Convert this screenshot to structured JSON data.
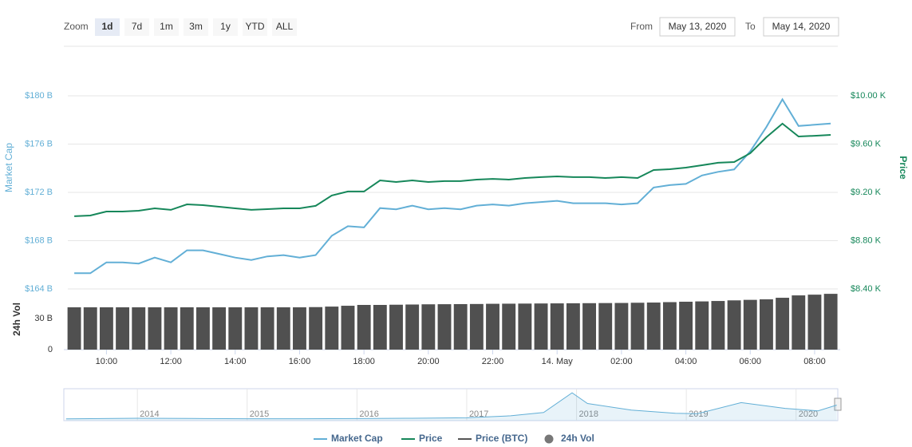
{
  "chart_data": {
    "type": "line",
    "zoom_label": "Zoom",
    "zoom_buttons": [
      "1d",
      "7d",
      "1m",
      "3m",
      "1y",
      "YTD",
      "ALL"
    ],
    "zoom_active": 0,
    "from_label": "From",
    "from_date": "May 13, 2020",
    "to_label": "To",
    "to_date": "May 14, 2020",
    "y_label": "Market Cap",
    "y2_label": "Price",
    "y3_label": "24h Vol",
    "x": [
      9.0,
      9.5,
      10.0,
      10.5,
      11.0,
      11.5,
      12.0,
      12.5,
      13.0,
      13.5,
      14.0,
      14.5,
      15.0,
      15.5,
      16.0,
      16.5,
      17.0,
      17.5,
      18.0,
      18.5,
      19.0,
      19.5,
      20.0,
      20.5,
      21.0,
      21.5,
      22.0,
      22.5,
      23.0,
      23.5,
      24.0,
      24.5,
      25.0,
      25.5,
      26.0,
      26.5,
      27.0,
      27.5,
      28.0,
      28.5,
      29.0,
      29.5,
      30.0,
      30.5,
      31.0,
      31.5,
      32.0,
      32.5
    ],
    "xlim": [
      8.8,
      32.72
    ],
    "xticks": [
      {
        "value": 10,
        "label": "10:00"
      },
      {
        "value": 12,
        "label": "12:00"
      },
      {
        "value": 14,
        "label": "14:00"
      },
      {
        "value": 16,
        "label": "16:00"
      },
      {
        "value": 18,
        "label": "18:00"
      },
      {
        "value": 20,
        "label": "20:00"
      },
      {
        "value": 22,
        "label": "22:00"
      },
      {
        "value": 24,
        "label": "14. May"
      },
      {
        "value": 26,
        "label": "02:00"
      },
      {
        "value": 28,
        "label": "04:00"
      },
      {
        "value": 30,
        "label": "06:00"
      },
      {
        "value": 32,
        "label": "08:00"
      }
    ],
    "ylim": [
      164,
      180
    ],
    "yticks": [
      {
        "value": 164,
        "label": "$164 B"
      },
      {
        "value": 168,
        "label": "$168 B"
      },
      {
        "value": 172,
        "label": "$172 B"
      },
      {
        "value": 176,
        "label": "$176 B"
      },
      {
        "value": 180,
        "label": "$180 B"
      }
    ],
    "y2lim": [
      8400,
      10000
    ],
    "y2ticks": [
      {
        "value": 8400,
        "label": "$8.40 K"
      },
      {
        "value": 8800,
        "label": "$8.80 K"
      },
      {
        "value": 9200,
        "label": "$9.20 K"
      },
      {
        "value": 9600,
        "label": "$9.60 K"
      },
      {
        "value": 10000,
        "label": "$10.00 K"
      }
    ],
    "y3lim": [
      0,
      58.5
    ],
    "y3ticks": [
      0,
      {
        "value": 30,
        "label": "30 B"
      }
    ],
    "grid": true,
    "series": [
      {
        "name": "Market Cap",
        "color": "#62afd6",
        "axis": "y",
        "values": [
          165.3,
          165.3,
          166.2,
          166.2,
          166.1,
          166.6,
          166.2,
          167.2,
          167.2,
          166.9,
          166.6,
          166.4,
          166.7,
          166.8,
          166.6,
          166.8,
          168.4,
          169.2,
          169.1,
          170.7,
          170.6,
          170.9,
          170.6,
          170.7,
          170.6,
          170.9,
          171.0,
          170.9,
          171.1,
          171.2,
          171.3,
          171.1,
          171.1,
          171.1,
          171.0,
          171.1,
          172.4,
          172.6,
          172.7,
          173.4,
          173.7,
          173.9,
          175.4,
          177.4,
          179.7,
          177.5,
          177.6,
          177.7
        ]
      },
      {
        "name": "Price",
        "color": "#16875a",
        "axis": "y2",
        "values": [
          9002,
          9008,
          9041,
          9041,
          9048,
          9068,
          9055,
          9101,
          9094,
          9081,
          9068,
          9055,
          9061,
          9068,
          9068,
          9088,
          9174,
          9207,
          9207,
          9299,
          9286,
          9299,
          9286,
          9293,
          9293,
          9306,
          9312,
          9306,
          9319,
          9326,
          9332,
          9326,
          9326,
          9319,
          9326,
          9319,
          9385,
          9392,
          9405,
          9425,
          9445,
          9451,
          9524,
          9656,
          9769,
          9663,
          9669,
          9676
        ]
      },
      {
        "name": "Price (BTC)",
        "color": "#555555",
        "hidden": true
      },
      {
        "name": "24h Vol",
        "color": "#505050",
        "axis": "y3",
        "mark": "bar",
        "values": [
          40.8,
          40.8,
          40.8,
          40.8,
          40.8,
          40.8,
          40.8,
          40.8,
          40.8,
          40.8,
          40.8,
          40.8,
          40.8,
          40.8,
          40.8,
          41.0,
          41.5,
          42.3,
          43.1,
          43.1,
          43.3,
          43.5,
          43.7,
          43.8,
          43.9,
          44.0,
          44.2,
          44.3,
          44.4,
          44.5,
          44.6,
          44.7,
          44.8,
          44.9,
          45.0,
          45.2,
          45.4,
          45.8,
          46.2,
          46.5,
          46.9,
          47.5,
          48.0,
          48.5,
          50.0,
          52.3,
          53.0,
          53.8
        ]
      }
    ],
    "navigator": {
      "x": [
        2013.35,
        2014.0,
        2014.5,
        2015.0,
        2015.5,
        2016.0,
        2016.5,
        2017.0,
        2017.4,
        2017.7,
        2017.96,
        2018.1,
        2018.5,
        2018.9,
        2019.1,
        2019.5,
        2019.9,
        2020.2,
        2020.37
      ],
      "values": [
        1.5,
        10,
        7,
        4,
        4,
        6,
        10,
        16,
        40,
        80,
        320,
        190,
        110,
        70,
        65,
        200,
        130,
        100,
        170
      ],
      "xlim": [
        2013.33,
        2020.38
      ],
      "ylim": [
        0,
        350
      ],
      "xticks": [
        2014,
        2015,
        2016,
        2017,
        2018,
        2019,
        2020
      ]
    }
  }
}
